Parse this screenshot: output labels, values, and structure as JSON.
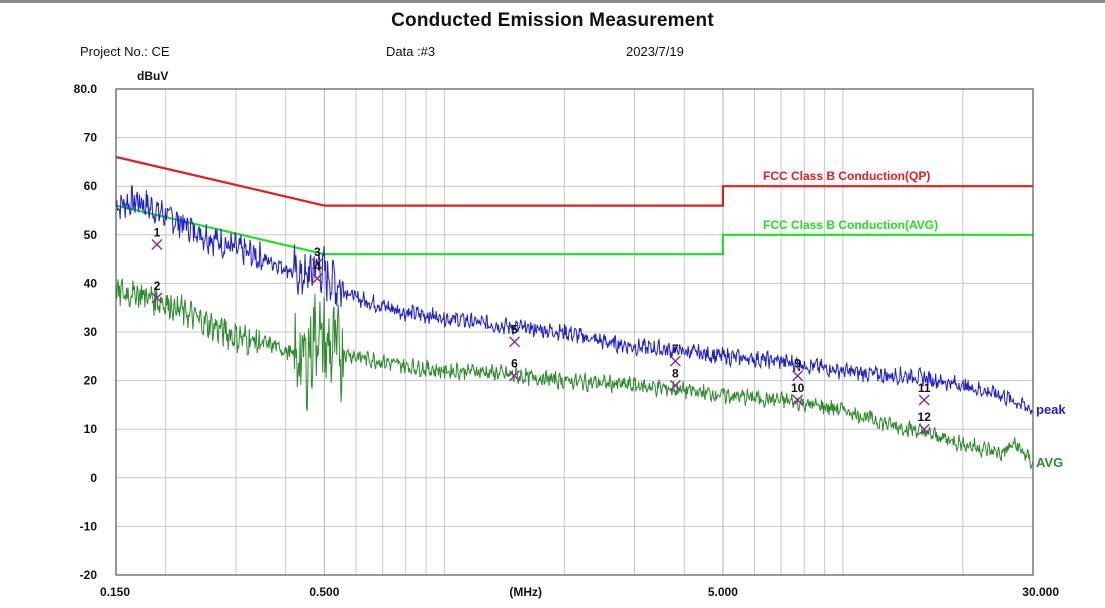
{
  "header": {
    "project": "Project No.: CE",
    "data_no": "Data :#3",
    "date": "2023/7/19"
  },
  "chart_data": {
    "type": "line",
    "title": "Conducted Emission Measurement",
    "ylabel": "dBuV",
    "xlabel": "(MHz)",
    "x_scale": "log",
    "xlim": [
      0.15,
      30.0
    ],
    "ylim": [
      -20,
      80
    ],
    "y_ticks": [
      "80.0",
      "70",
      "60",
      "50",
      "40",
      "30",
      "20",
      "10",
      "0",
      "-10",
      "-20"
    ],
    "x_tick_labels": [
      {
        "value": 0.15,
        "label": "0.150"
      },
      {
        "value": 0.5,
        "label": "0.500"
      },
      {
        "value": 1.6,
        "label": "(MHz)"
      },
      {
        "value": 5.0,
        "label": "5.000"
      },
      {
        "value": 30.0,
        "label": "30.000"
      }
    ],
    "grid": true,
    "limits": [
      {
        "name": "FCC Class B Conduction(QP)",
        "color": "#e02020",
        "points": [
          [
            0.15,
            66
          ],
          [
            0.5,
            56
          ],
          [
            5.0,
            56
          ],
          [
            5.0,
            60
          ],
          [
            30.0,
            60
          ]
        ]
      },
      {
        "name": "FCC Class B Conduction(AVG)",
        "color": "#22dd22",
        "points": [
          [
            0.15,
            56
          ],
          [
            0.5,
            46
          ],
          [
            5.0,
            46
          ],
          [
            5.0,
            50
          ],
          [
            30.0,
            50
          ]
        ]
      }
    ],
    "series": [
      {
        "name": "peak",
        "color": "#1f1fd0",
        "points": [
          [
            0.15,
            56
          ],
          [
            0.17,
            57
          ],
          [
            0.2,
            54
          ],
          [
            0.25,
            50
          ],
          [
            0.3,
            47
          ],
          [
            0.38,
            44
          ],
          [
            0.45,
            41
          ],
          [
            0.48,
            44
          ],
          [
            0.5,
            42
          ],
          [
            0.6,
            37
          ],
          [
            0.8,
            34
          ],
          [
            1.0,
            33
          ],
          [
            1.2,
            32
          ],
          [
            1.5,
            31
          ],
          [
            2.0,
            30
          ],
          [
            2.5,
            28
          ],
          [
            3.0,
            27
          ],
          [
            4.0,
            26
          ],
          [
            5.0,
            25
          ],
          [
            7.0,
            24
          ],
          [
            10.0,
            22
          ],
          [
            13.0,
            21
          ],
          [
            15.0,
            21
          ],
          [
            20.0,
            19
          ],
          [
            25.0,
            17
          ],
          [
            30.0,
            14
          ]
        ]
      },
      {
        "name": "AVG",
        "color": "#2e8b2e",
        "points": [
          [
            0.15,
            38
          ],
          [
            0.17,
            38
          ],
          [
            0.2,
            36
          ],
          [
            0.25,
            32
          ],
          [
            0.3,
            29
          ],
          [
            0.38,
            27
          ],
          [
            0.45,
            24
          ],
          [
            0.48,
            31
          ],
          [
            0.5,
            27
          ],
          [
            0.6,
            25
          ],
          [
            0.8,
            23
          ],
          [
            1.0,
            22
          ],
          [
            1.2,
            22
          ],
          [
            1.5,
            21
          ],
          [
            2.0,
            20
          ],
          [
            3.0,
            19
          ],
          [
            4.0,
            18
          ],
          [
            5.0,
            17
          ],
          [
            7.0,
            16
          ],
          [
            10.0,
            14
          ],
          [
            13.0,
            11
          ],
          [
            15.0,
            10
          ],
          [
            20.0,
            7
          ],
          [
            25.0,
            5
          ],
          [
            27.0,
            7
          ],
          [
            30.0,
            3
          ]
        ]
      }
    ],
    "markers": [
      {
        "label": "1",
        "x": 0.19,
        "y": 48,
        "type": "QP"
      },
      {
        "label": "2",
        "x": 0.19,
        "y": 37,
        "type": "AVG"
      },
      {
        "label": "3",
        "x": 0.48,
        "y": 44,
        "type": "QP"
      },
      {
        "label": "4",
        "x": 0.48,
        "y": 41,
        "type": "AVG"
      },
      {
        "label": "5",
        "x": 1.5,
        "y": 28,
        "type": "QP"
      },
      {
        "label": "6",
        "x": 1.5,
        "y": 21,
        "type": "AVG"
      },
      {
        "label": "7",
        "x": 3.8,
        "y": 24,
        "type": "QP"
      },
      {
        "label": "8",
        "x": 3.8,
        "y": 19,
        "type": "AVG"
      },
      {
        "label": "9",
        "x": 7.7,
        "y": 21,
        "type": "QP"
      },
      {
        "label": "10",
        "x": 7.7,
        "y": 16,
        "type": "AVG"
      },
      {
        "label": "11",
        "x": 16.0,
        "y": 16,
        "type": "QP"
      },
      {
        "label": "12",
        "x": 16.0,
        "y": 10,
        "type": "AVG"
      }
    ],
    "marker_color": "#8a2a8a"
  }
}
